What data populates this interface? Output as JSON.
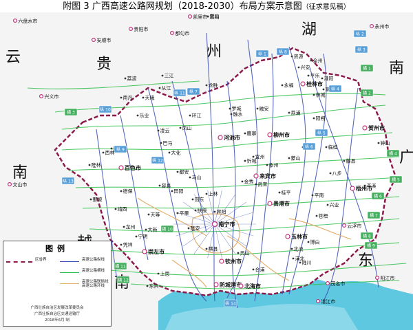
{
  "title": {
    "main": "附图 3    广西高速公路网规划（2018-2030）布局方案示意图",
    "sub": "（征求意见稿）"
  },
  "neighbors": [
    "云",
    "贵",
    "州",
    "湖",
    "南",
    "南",
    "广",
    "东",
    "越",
    "南"
  ],
  "capital": "南宁市",
  "prefectures": [
    "桂林市",
    "柳州市",
    "河池市",
    "百色市",
    "来宾市",
    "贺州市",
    "梧州市",
    "贵港市",
    "玉林市",
    "崇左市",
    "钦州市",
    "防城港市",
    "北海市"
  ],
  "outside_cities": [
    "六盘水市",
    "贵阳市",
    "都匀市",
    "凯里市",
    "安顺市",
    "兴义市",
    "永州市",
    "文山市",
    "茂名市",
    "阳江市",
    "湛江市",
    "云浮市"
  ],
  "counties": [
    "雷山",
    "三江",
    "从江",
    "龙胜",
    "荔波",
    "南丹",
    "天峨",
    "罗城",
    "环江",
    "宜州",
    "忻城",
    "金秀",
    "平乐",
    "富川",
    "昭平",
    "蒙山",
    "藤县",
    "岑溪",
    "北流",
    "陆川",
    "博白",
    "浦北",
    "灵山",
    "横县",
    "宾阳",
    "上林",
    "马山",
    "都安",
    "大化",
    "巴马",
    "凤山",
    "凌云",
    "乐业",
    "西林",
    "隆林",
    "田林",
    "那坡",
    "德保",
    "靖西",
    "天等",
    "大新",
    "龙州",
    "凭祥",
    "宁明",
    "上思",
    "东兴",
    "合浦",
    "桂平",
    "平南",
    "武宣",
    "象州",
    "鹿寨",
    "融安",
    "融水",
    "资源",
    "全州",
    "兴安",
    "灌阳",
    "恭城",
    "阳朔",
    "荔浦",
    "永福",
    "临桂",
    "钟山",
    "八步",
    "苍梧",
    "兴业",
    "容县",
    "田阳",
    "田东",
    "平果",
    "隆安",
    "扶绥",
    "武鸣"
  ],
  "route_badges": {
    "vertical": [
      "纵 1",
      "纵 2",
      "纵 3",
      "纵 4",
      "纵 5",
      "纵 6",
      "纵 7",
      "纵 8",
      "纵 9",
      "纵 10",
      "纵 11",
      "纵 12",
      "纵 13",
      "纵 14"
    ],
    "horizontal": [
      "横 1",
      "横 2",
      "横 3",
      "横 4",
      "横 5",
      "横 6",
      "横 7",
      "横 8",
      "横 9",
      "横 10",
      "横 11",
      "横 12"
    ]
  },
  "legend": {
    "title": "图例",
    "items": [
      {
        "label": "区省界",
        "color": "#8b1a4a",
        "style": "dashed"
      },
      {
        "label": "高速公路纵线",
        "color": "#3a4fb0",
        "style": "solid"
      },
      {
        "label": "高速公路横线",
        "color": "#2fbf4a",
        "style": "solid"
      },
      {
        "label": "高速公路联络线 高速公路环线",
        "color": "#e3b070",
        "style": "solid"
      }
    ],
    "credits": [
      "广西壮族自治区发展改革委员会",
      "广西壮族自治区交通运输厅",
      "2018年6月 制"
    ]
  },
  "colors": {
    "border": "#8b1a4a",
    "vertical": "#3a4fb0",
    "horizontal": "#2fbf4a",
    "connector": "#e3b070",
    "sea": "#5ec8e0",
    "land": "#ffffff",
    "outside": "#f3f3f3",
    "badge_v": "#5aa0d8",
    "badge_h": "#46b060"
  }
}
